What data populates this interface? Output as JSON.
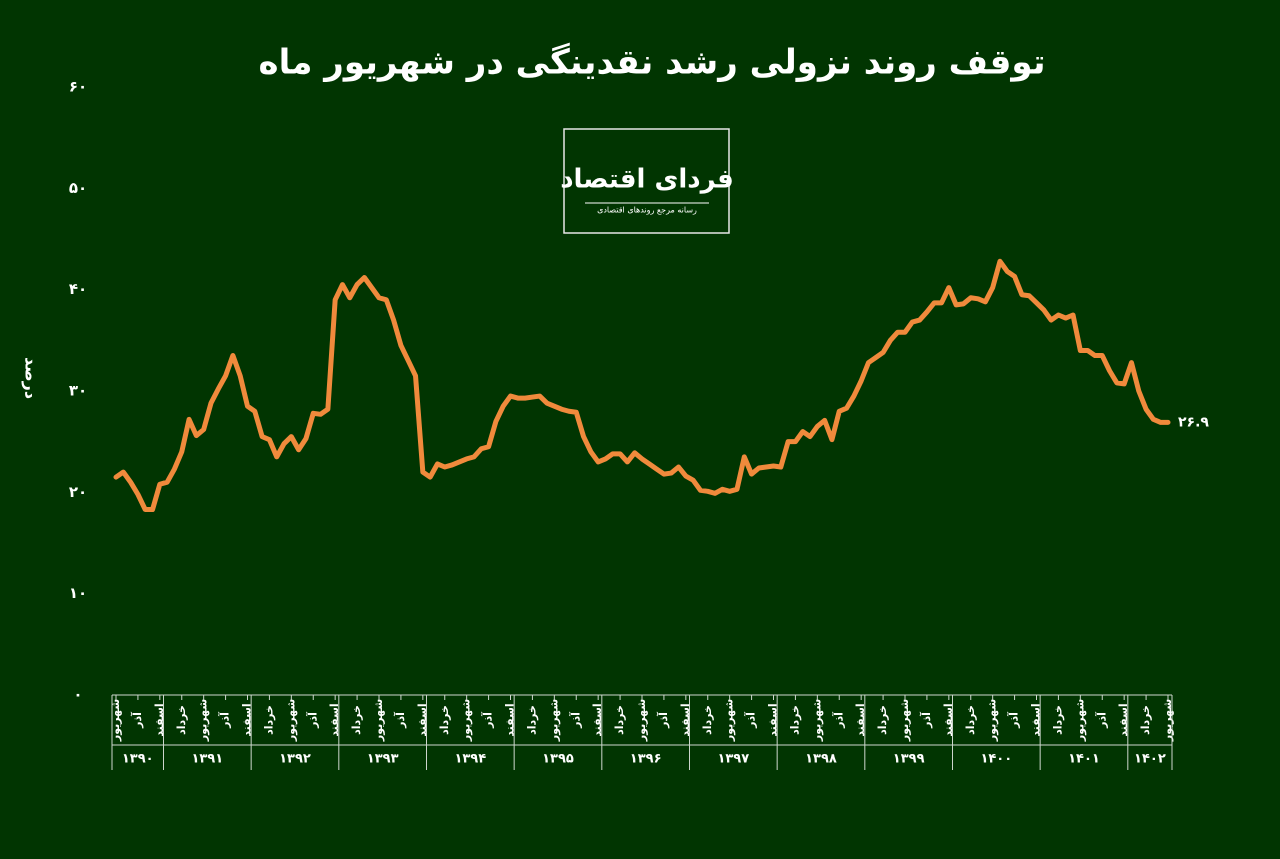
{
  "chart_data": {
    "type": "line",
    "title": "توقف روند نزولی رشد نقدینگی در شهریور ماه",
    "y_label": "درصد",
    "logo": {
      "name": "فردای اقتصاد",
      "tagline": "رسانه مرجع روندهای اقتصادی"
    },
    "color": "#f08a3c",
    "ylim": [
      0,
      60
    ],
    "yticks": [
      {
        "value": 0,
        "label": "۰"
      },
      {
        "value": 10,
        "label": "۱۰"
      },
      {
        "value": 20,
        "label": "۲۰"
      },
      {
        "value": 30,
        "label": "۳۰"
      },
      {
        "value": 40,
        "label": "۴۰"
      },
      {
        "value": 50,
        "label": "۵۰"
      },
      {
        "value": 60,
        "label": "۶۰"
      }
    ],
    "years": [
      "۱۳۹۰",
      "۱۳۹۱",
      "۱۳۹۲",
      "۱۳۹۳",
      "۱۳۹۴",
      "۱۳۹۵",
      "۱۳۹۶",
      "۱۳۹۷",
      "۱۳۹۸",
      "۱۳۹۹",
      "۱۴۰۰",
      "۱۴۰۱",
      "۱۴۰۲"
    ],
    "categories": [
      "شهریور",
      null,
      null,
      "آذر",
      null,
      null,
      "اسفند",
      null,
      null,
      "خرداد",
      null,
      null,
      "شهریور",
      null,
      null,
      "آذر",
      null,
      null,
      "اسفند",
      null,
      null,
      "خرداد",
      null,
      null,
      "شهریور",
      null,
      null,
      "آذر",
      null,
      null,
      "اسفند",
      null,
      null,
      "خرداد",
      null,
      null,
      "شهریور",
      null,
      null,
      "آذر",
      null,
      null,
      "اسفند",
      null,
      null,
      "خرداد",
      null,
      null,
      "شهریور",
      null,
      null,
      "آذر",
      null,
      null,
      "اسفند",
      null,
      null,
      "خرداد",
      null,
      null,
      "شهریور",
      null,
      null,
      "آذر",
      null,
      null,
      "اسفند",
      null,
      null,
      "خرداد",
      null,
      null,
      "شهریور",
      null,
      null,
      "آذر",
      null,
      null,
      "اسفند",
      null,
      null,
      "خرداد",
      null,
      null,
      "شهریور",
      null,
      null,
      "آذر",
      null,
      null,
      "اسفند",
      null,
      null,
      "خرداد",
      null,
      null,
      "شهریور",
      null,
      null,
      "آذر",
      null,
      null,
      "اسفند",
      null,
      null,
      "خرداد",
      null,
      null,
      "شهریور",
      null,
      null,
      "آذر",
      null,
      null,
      "اسفند",
      null,
      null,
      "خرداد",
      null,
      null,
      "شهریور",
      null,
      null,
      "آذر",
      null,
      null,
      "اسفند",
      null,
      null,
      "خرداد",
      null,
      null,
      "شهریور",
      null,
      null,
      "آذر",
      null,
      null,
      "اسفند",
      null,
      null,
      "خرداد",
      null,
      null,
      "شهریور"
    ],
    "values": [
      21.5,
      22,
      21,
      19.8,
      18.3,
      18.3,
      20.8,
      21,
      22.3,
      24,
      27.2,
      25.6,
      26.2,
      28.8,
      30.2,
      31.5,
      33.5,
      31.5,
      28.5,
      28,
      25.5,
      25.2,
      23.5,
      24.8,
      25.5,
      24.2,
      25.3,
      27.8,
      27.7,
      28.2,
      39,
      40.5,
      39.2,
      40.5,
      41.2,
      40.2,
      39.2,
      39,
      37,
      34.5,
      33,
      31.5,
      22,
      21.5,
      22.8,
      22.5,
      22.7,
      23,
      23.3,
      23.5,
      24.3,
      24.5,
      27,
      28.5,
      29.5,
      29.3,
      29.3,
      29.4,
      29.5,
      28.8,
      28.5,
      28.2,
      28,
      27.9,
      25.5,
      24,
      23,
      23.3,
      23.8,
      23.8,
      23,
      23.9,
      23.3,
      22.8,
      22.3,
      21.8,
      21.9,
      22.5,
      21.6,
      21.2,
      20.2,
      20.1,
      19.9,
      20.3,
      20.1,
      20.3,
      23.5,
      21.8,
      22.4,
      22.5,
      22.6,
      22.5,
      25,
      25,
      26,
      25.5,
      26.5,
      27.1,
      25.2,
      28,
      28.3,
      29.5,
      31,
      32.8,
      33.3,
      33.8,
      35,
      35.8,
      35.8,
      36.8,
      37,
      37.8,
      38.7,
      38.7,
      40.2,
      38.5,
      38.6,
      39.2,
      39.1,
      38.8,
      40.2,
      42.8,
      41.8,
      41.3,
      39.5,
      39.4,
      38.7,
      38,
      37,
      37.5,
      37.2,
      37.5,
      34,
      34,
      33.5,
      33.5,
      32,
      30.8,
      30.7,
      32.8,
      30,
      28.2,
      27.2,
      26.9,
      26.9
    ],
    "value_labels": [
      null,
      null,
      null,
      null,
      null,
      null,
      null,
      null,
      null,
      null,
      null,
      null,
      null,
      null,
      null,
      null,
      null,
      null,
      null,
      null,
      null,
      null,
      null,
      null,
      null,
      null,
      null,
      null,
      null,
      null,
      null,
      null,
      null,
      null,
      null,
      null,
      null,
      null,
      null,
      null,
      null,
      null,
      null,
      null,
      null,
      null,
      null,
      null,
      null,
      null,
      null,
      null,
      null,
      null,
      null,
      null,
      null,
      null,
      null,
      null,
      null,
      null,
      null,
      null,
      null,
      null,
      null,
      null,
      null,
      null,
      null,
      null,
      null,
      null,
      null,
      null,
      null,
      null,
      null,
      null,
      null,
      null,
      null,
      null,
      null,
      null,
      null,
      null,
      null,
      null,
      null,
      null,
      null,
      null,
      null,
      null,
      null,
      null,
      null,
      null,
      null,
      null,
      null,
      null,
      null,
      null,
      null,
      null,
      null,
      null,
      null,
      null,
      null,
      null,
      null,
      null,
      null,
      null,
      null,
      null,
      null,
      null,
      null,
      null,
      null,
      null,
      null,
      null,
      null,
      null,
      null,
      null,
      null,
      null,
      null,
      null,
      null,
      null,
      null,
      null,
      null,
      null,
      null,
      null,
      "۲۶.۹"
    ]
  }
}
